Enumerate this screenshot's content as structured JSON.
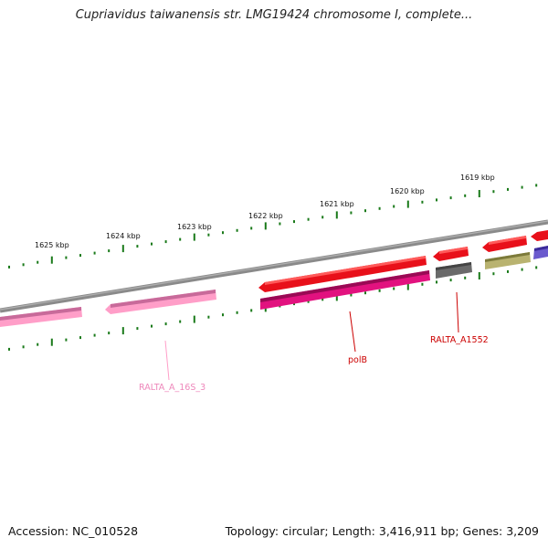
{
  "title": "Cupriavidus taiwanensis str. LMG19424 chromosome I, complete...",
  "footer": {
    "accession": "Accession: NC_010528",
    "summary": "Topology: circular; Length: 3,416,911 bp; Genes: 3,209"
  },
  "colors": {
    "backbone": "#8a8a8a",
    "tick": "#1a7a1a",
    "gene_red": "#e8101a",
    "gene_pink": "#ff9ec8",
    "gene_magenta": "#e2127f",
    "gene_gray": "#6a6a6a",
    "gene_olive": "#b9b370",
    "gene_purple": "#6a5acd",
    "label_red": "#cc0000",
    "label_pink": "#ee88bb"
  },
  "scale_labels": [
    "1619 kbp",
    "1620 kbp",
    "1621 kbp",
    "1622 kbp",
    "1623 kbp",
    "1624 kbp",
    "1625 kbp"
  ],
  "gene_labels": [
    {
      "name": "RALTA_A_16S_3",
      "color": "label_pink"
    },
    {
      "name": "polB",
      "color": "label_red"
    },
    {
      "name": "RALTA_A1552",
      "color": "label_red"
    }
  ]
}
